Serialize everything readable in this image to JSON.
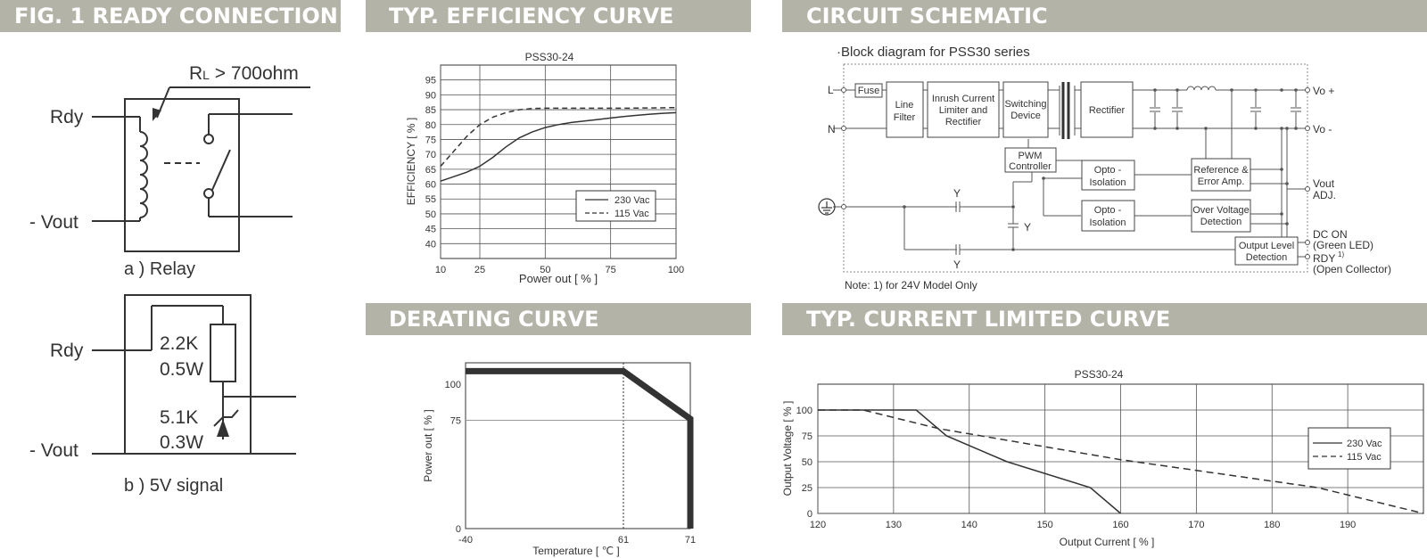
{
  "headers": {
    "ready": "FIG. 1 READY CONNECTION",
    "efficiency": "TYP. EFFICIENCY CURVE",
    "schematic": "CIRCUIT SCHEMATIC",
    "derating": "DERATING CURVE",
    "current": "TYP. CURRENT LIMITED CURVE"
  },
  "ready": {
    "relay": {
      "rdy": "Rdy",
      "vout": "- Vout",
      "load": "R",
      "load_sub": "L",
      "load_val": " > 700ohm",
      "caption": "a ) Relay"
    },
    "signal": {
      "rdy": "Rdy",
      "vout": "- Vout",
      "r1a": "2.2K",
      "r1b": "0.5W",
      "z1a": "5.1K",
      "z1b": "0.3W",
      "caption": "b ) 5V signal"
    }
  },
  "schematic": {
    "title": "·Block diagram for PSS30 series",
    "note": "Note: 1) for 24V Model Only",
    "terminals": {
      "L": "L",
      "N": "N",
      "vo_plus": "Vo +",
      "vo_minus": "Vo -",
      "vout1": "Vout",
      "vout2": "ADJ.",
      "dcon1": "DC ON",
      "dcon2": "(Green LED)",
      "rdy1": "RDY",
      "rdy_sup": "1)",
      "rdy2": "(Open Collector)"
    },
    "blocks": {
      "fuse": [
        "Fuse"
      ],
      "line_filter": [
        "Line",
        "Filter"
      ],
      "inrush": [
        "Inrush Current",
        "Limiter and",
        "Rectifier"
      ],
      "switching": [
        "Switching",
        "Device"
      ],
      "rectifier": [
        "Rectifier"
      ],
      "pwm": [
        "PWM",
        "Controller"
      ],
      "opto1": [
        "Opto -",
        "Isolation"
      ],
      "opto2": [
        "Opto -",
        "Isolation"
      ],
      "ref": [
        "Reference &",
        "Error Amp."
      ],
      "ovp": [
        "Over Voltage",
        "Detection"
      ],
      "olevel": [
        "Output Level",
        "Detection"
      ]
    },
    "cap_labels": [
      "Y",
      "Y",
      "Y"
    ]
  },
  "chart_data": [
    {
      "type": "line",
      "title": "PSS30-24",
      "xlabel": "Power  out [ % ]",
      "ylabel": "EFFICIENCY [ % ]",
      "xlim": [
        10,
        100
      ],
      "ylim": [
        35,
        100
      ],
      "x_ticks": [
        10,
        25,
        50,
        75,
        100
      ],
      "y_ticks": [
        40,
        45,
        50,
        55,
        60,
        65,
        70,
        75,
        80,
        85,
        90,
        95
      ],
      "grid": true,
      "legend_position": "lower-right",
      "series": [
        {
          "name": "230 Vac",
          "style": "solid",
          "x": [
            10,
            15,
            20,
            25,
            30,
            35,
            40,
            45,
            50,
            55,
            60,
            65,
            70,
            75,
            80,
            85,
            90,
            95,
            100
          ],
          "y": [
            61,
            62.5,
            64,
            66,
            69,
            72.5,
            75.5,
            77.5,
            79,
            80,
            80.7,
            81.2,
            81.7,
            82.2,
            82.7,
            83.1,
            83.5,
            83.8,
            84
          ]
        },
        {
          "name": "115 Vac",
          "style": "dashed",
          "x": [
            10,
            15,
            20,
            25,
            30,
            35,
            40,
            45,
            50,
            60,
            70,
            80,
            90,
            100
          ],
          "y": [
            66,
            71,
            76,
            80,
            82.5,
            84,
            85,
            85.4,
            85.5,
            85.5,
            85.5,
            85.5,
            85.6,
            85.7
          ]
        }
      ]
    },
    {
      "type": "line",
      "title": "",
      "xlabel": "Temperature [ ℃ ]",
      "ylabel": "Power out [ % ]",
      "x_ticks": [
        "-40",
        "61",
        "71"
      ],
      "y_ticks": [
        "0",
        "75",
        "100"
      ],
      "series": [
        {
          "x": [
            -40,
            61,
            71,
            71
          ],
          "y": [
            109,
            109,
            76,
            0
          ]
        }
      ],
      "reference_lines": {
        "vertical_x": 61,
        "horizontal_y": 75
      }
    },
    {
      "type": "line",
      "title": "PSS30-24",
      "xlabel": "Output Current [ % ]",
      "ylabel": "Output Voltage  [ % ]",
      "xlim": [
        120,
        200
      ],
      "ylim": [
        0,
        125
      ],
      "x_ticks": [
        120,
        130,
        140,
        150,
        160,
        170,
        180,
        190
      ],
      "y_ticks": [
        0,
        25,
        50,
        75,
        100
      ],
      "grid": true,
      "legend_position": "right",
      "series": [
        {
          "name": "230 Vac",
          "style": "solid",
          "x": [
            120,
            133,
            137,
            145,
            156,
            160
          ],
          "y": [
            100,
            100,
            75,
            50,
            25,
            0
          ]
        },
        {
          "name": "115 Vac",
          "style": "dashed",
          "x": [
            120,
            126,
            136,
            160,
            186,
            200
          ],
          "y": [
            100,
            100,
            82,
            52,
            25,
            0
          ]
        }
      ]
    }
  ]
}
